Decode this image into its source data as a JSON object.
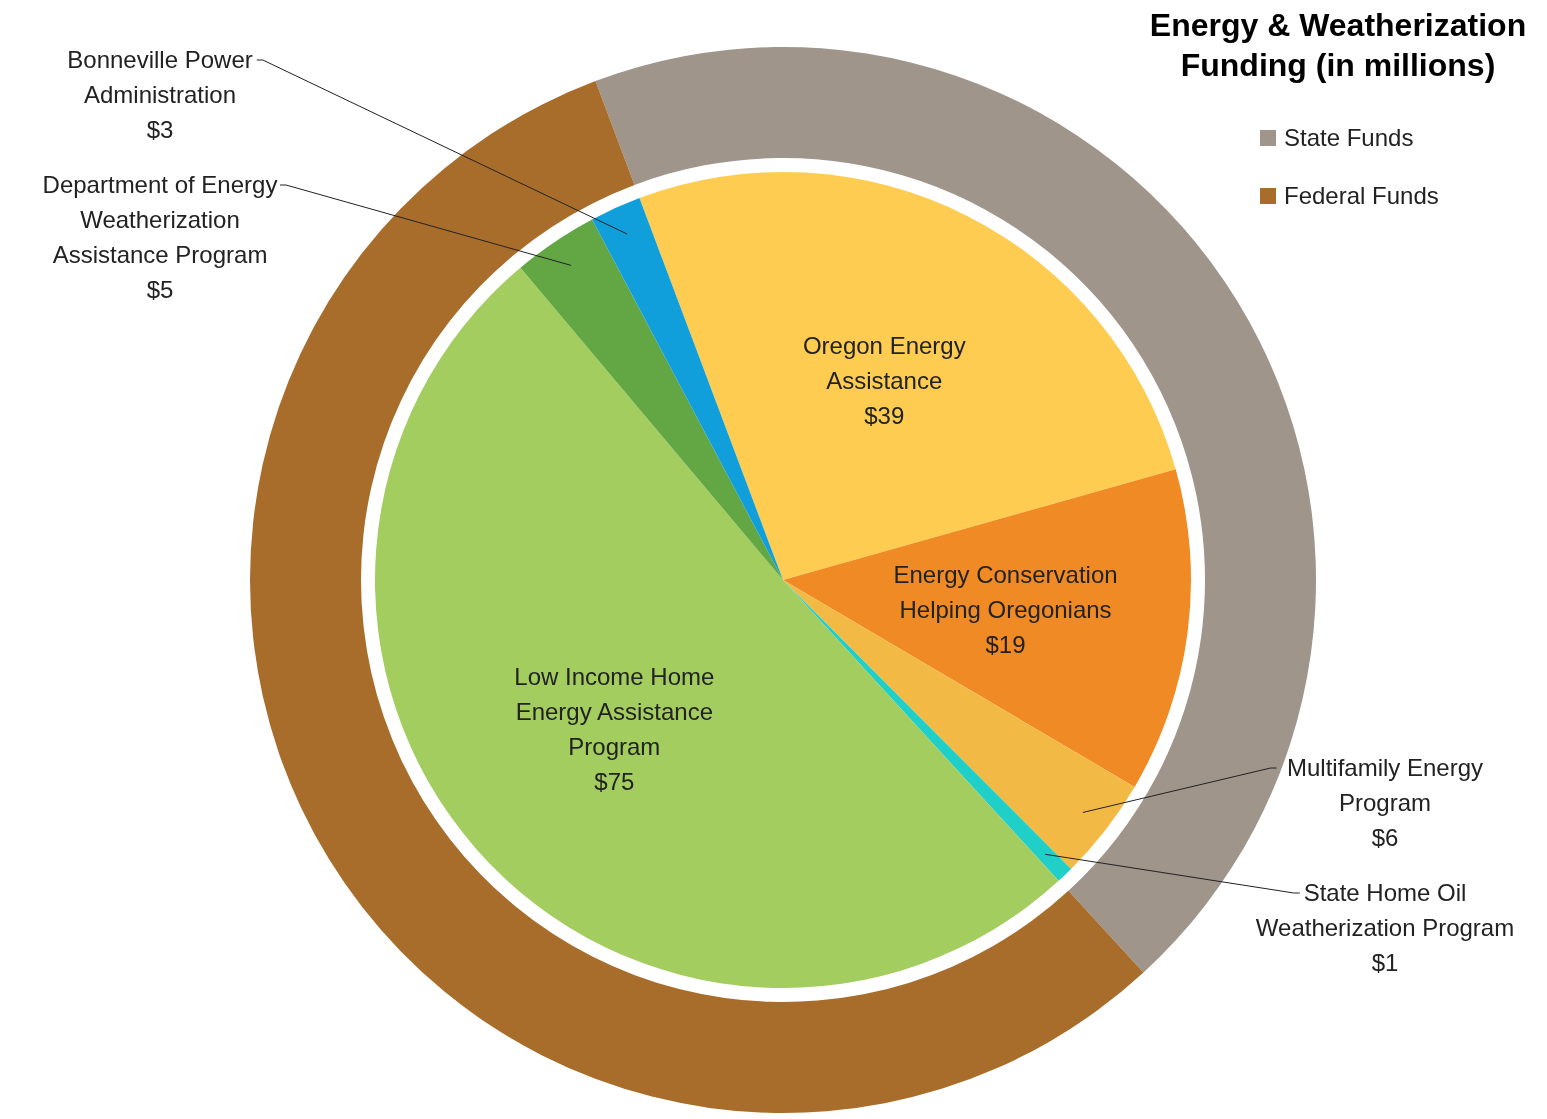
{
  "chart_data": [
    {
      "type": "donut",
      "title": "Energy & Weatherization Funding (in millions)",
      "legend": "top right",
      "categories": [
        "State Funds",
        "Federal Funds"
      ],
      "values": [
        43.9,
        56.1
      ],
      "colors": [
        "#9f958a",
        "#a86d2a"
      ]
    },
    {
      "type": "pie",
      "categories": [
        "Oregon Energy Assistance",
        "Energy Conservation Helping Oregonians",
        "Multifamily Energy Program",
        "State Home Oil Weatherization Program",
        "Low Income Home Energy Assistance Program",
        "Department of Energy Weatherization Assistance Program",
        "Bonneville Power Administration"
      ],
      "values": [
        39,
        19,
        6,
        1,
        75,
        5,
        3
      ],
      "colors": [
        "#fecc50",
        "#f08a24",
        "#f2ba45",
        "#1fcfc8",
        "#a3cd5f",
        "#62a744",
        "#119fdc"
      ],
      "value_labels": [
        "$39",
        "$19",
        "$6",
        "$1",
        "$75",
        "$5",
        "$3"
      ]
    }
  ]
}
